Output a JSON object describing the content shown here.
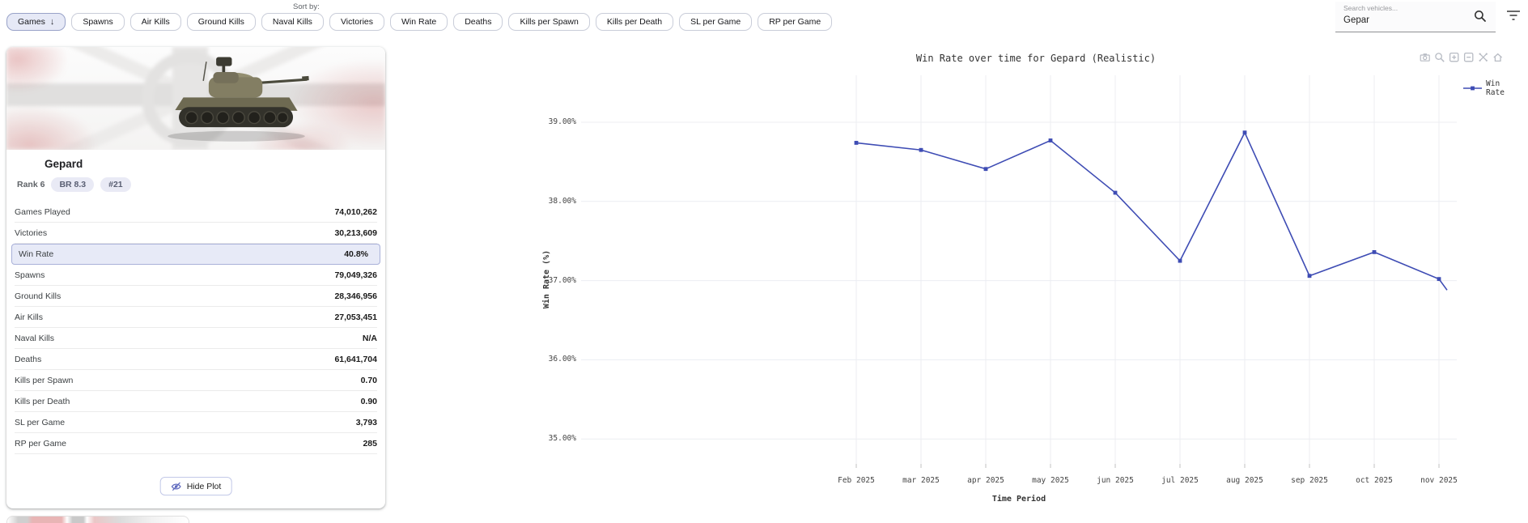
{
  "toolbar": {
    "sort_by_label": "Sort by:",
    "buttons": [
      {
        "label": "Games",
        "active": true,
        "sort_direction_icon": "arrow-down"
      },
      {
        "label": "Spawns"
      },
      {
        "label": "Air Kills"
      },
      {
        "label": "Ground Kills"
      },
      {
        "label": "Naval Kills"
      },
      {
        "label": "Victories"
      },
      {
        "label": "Win Rate"
      },
      {
        "label": "Deaths"
      },
      {
        "label": "Kills per Spawn"
      },
      {
        "label": "Kills per Death"
      },
      {
        "label": "SL per Game"
      },
      {
        "label": "RP per Game"
      }
    ]
  },
  "search": {
    "placeholder": "Search vehicles...",
    "value": "Gepar",
    "icons": [
      "search-icon",
      "filter-icon"
    ]
  },
  "vehicle_card": {
    "title": "Gepard",
    "rank_label": "Rank 6",
    "badges": [
      "BR 8.3",
      "#21"
    ],
    "stats": [
      {
        "label": "Games Played",
        "value": "74,010,262"
      },
      {
        "label": "Victories",
        "value": "30,213,609"
      },
      {
        "label": "Win Rate",
        "value": "40.8%",
        "highlighted": true
      },
      {
        "label": "Spawns",
        "value": "79,049,326"
      },
      {
        "label": "Ground Kills",
        "value": "28,346,956"
      },
      {
        "label": "Air Kills",
        "value": "27,053,451"
      },
      {
        "label": "Naval Kills",
        "value": "N/A"
      },
      {
        "label": "Deaths",
        "value": "61,641,704"
      },
      {
        "label": "Kills per Spawn",
        "value": "0.70"
      },
      {
        "label": "Kills per Death",
        "value": "0.90"
      },
      {
        "label": "SL per Game",
        "value": "3,793"
      },
      {
        "label": "RP per Game",
        "value": "285"
      }
    ],
    "hide_plot_button": {
      "label": "Hide Plot",
      "icon": "eye-off-icon"
    }
  },
  "chart_data": {
    "type": "line",
    "title": "Win Rate over time for Gepard (Realistic)",
    "xlabel": "Time Period",
    "ylabel": "Win Rate (%)",
    "legend_label": "Win Rate",
    "legend_position": "top-right",
    "line_color": "#3E4CB4",
    "grid": true,
    "categories": [
      "Feb 2025",
      "mar 2025",
      "apr 2025",
      "may 2025",
      "jun 2025",
      "jul 2025",
      "aug 2025",
      "sep 2025",
      "oct 2025",
      "nov 2025"
    ],
    "values": [
      38.74,
      38.65,
      38.41,
      38.77,
      38.11,
      37.25,
      38.87,
      37.06,
      37.36,
      37.02
    ],
    "trailing_partial_value": 36.88,
    "y_ticks": [
      "39.00%",
      "38.00%",
      "37.00%",
      "36.00%",
      "35.00%"
    ],
    "y_tick_values": [
      39,
      38,
      37,
      36,
      35
    ],
    "ylim": [
      34.7,
      39.6
    ],
    "modebar_icons": [
      "camera",
      "zoom",
      "zoom-in",
      "zoom-out",
      "autoscale",
      "reset-home"
    ]
  }
}
